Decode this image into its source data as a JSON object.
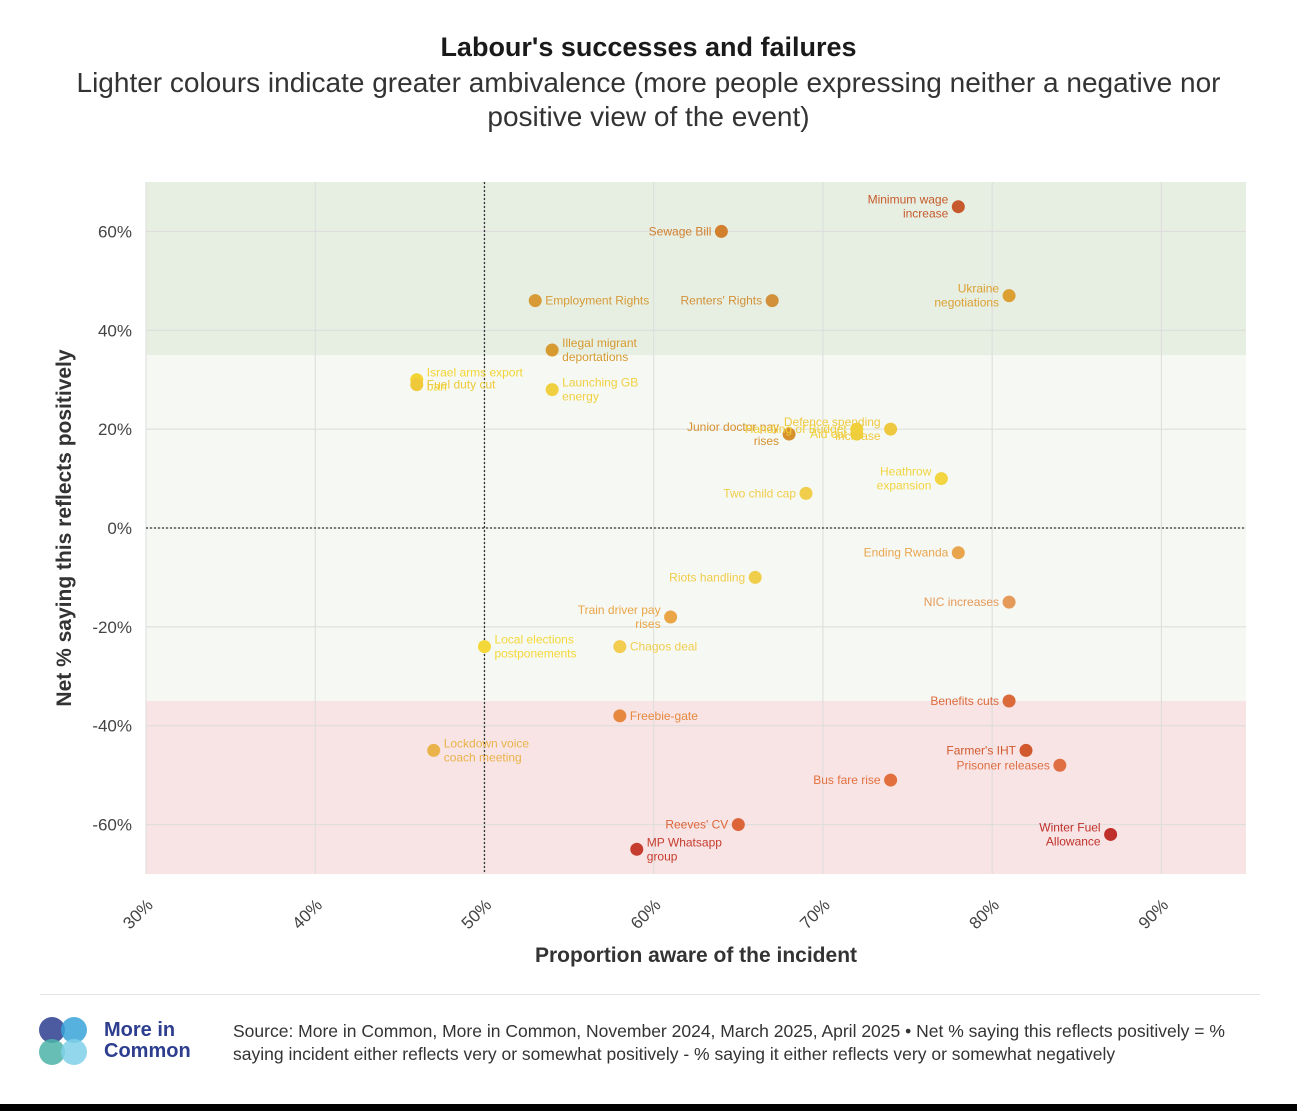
{
  "header": {
    "title": "Labour's successes and failures",
    "subtitle": "Lighter colours indicate greater ambivalence (more people expressing neither a negative nor positive view of the event)"
  },
  "chart_data": {
    "type": "scatter",
    "xlabel": "Proportion aware of the incident",
    "ylabel": "Net % saying this reflects positively",
    "xlim": [
      30,
      95
    ],
    "ylim": [
      -70,
      70
    ],
    "x_ticks": [
      30,
      40,
      50,
      60,
      70,
      80,
      90
    ],
    "x_tick_labels": [
      "30%",
      "40%",
      "50%",
      "60%",
      "70%",
      "80%",
      "90%"
    ],
    "y_ticks": [
      60,
      40,
      20,
      0,
      -20,
      -40,
      -60
    ],
    "y_tick_labels": [
      "60%",
      "40%",
      "20%",
      "0%",
      "-20%",
      "-40%",
      "-60%"
    ],
    "reference_lines": {
      "x": 50,
      "y": 0
    },
    "bands": [
      {
        "from": 35,
        "to": 70,
        "color": "#e7efe2"
      },
      {
        "from": -35,
        "to": 35,
        "color": "#f6f8f3"
      },
      {
        "from": -70,
        "to": -35,
        "color": "#f8e4e4"
      }
    ],
    "points": [
      {
        "label": "Minimum wage increase",
        "lines": [
          "Minimum wage",
          "increase"
        ],
        "x": 78,
        "y": 65,
        "color": "#c65a2c",
        "label_side": "left"
      },
      {
        "label": "Sewage Bill",
        "lines": [
          "Sewage Bill"
        ],
        "x": 64,
        "y": 60,
        "color": "#d27f2e",
        "label_side": "left"
      },
      {
        "label": "Employment Rights",
        "lines": [
          "Employment Rights"
        ],
        "x": 53,
        "y": 46,
        "color": "#d79a36",
        "label_side": "right"
      },
      {
        "label": "Renters' Rights",
        "lines": [
          "Renters' Rights"
        ],
        "x": 67,
        "y": 46,
        "color": "#d2903a",
        "label_side": "left"
      },
      {
        "label": "Ukraine negotiations",
        "lines": [
          "Ukraine",
          "negotiations"
        ],
        "x": 81,
        "y": 47,
        "color": "#dca032",
        "label_side": "left"
      },
      {
        "label": "Illegal migrant deportations",
        "lines": [
          "Illegal migrant",
          "deportations"
        ],
        "x": 54,
        "y": 36,
        "color": "#d69a30",
        "label_side": "right"
      },
      {
        "label": "Israel arms export ban",
        "lines": [
          "Israel arms export",
          "ban"
        ],
        "x": 46,
        "y": 30,
        "color": "#f2d534",
        "label_side": "right"
      },
      {
        "label": "Fuel duty cut",
        "lines": [
          "Fuel duty cut"
        ],
        "x": 46,
        "y": 29,
        "color": "#efc93a",
        "label_side": "right"
      },
      {
        "label": "Launching GB energy",
        "lines": [
          "Launching GB",
          "energy"
        ],
        "x": 54,
        "y": 28,
        "color": "#f0d040",
        "label_side": "right"
      },
      {
        "label": "Junior doctor pay rises",
        "lines": [
          "Junior doctor pay",
          "rises"
        ],
        "x": 68,
        "y": 19,
        "color": "#d7902e",
        "label_side": "left"
      },
      {
        "label": "Handling of Budget",
        "lines": [
          "Handling of Budget"
        ],
        "x": 72,
        "y": 20,
        "color": "#f2d038",
        "label_side": "left"
      },
      {
        "label": "Defence spending increase",
        "lines": [
          "Defence spending",
          "increase"
        ],
        "x": 74,
        "y": 20,
        "color": "#eec940",
        "label_side": "left"
      },
      {
        "label": "Aid cut",
        "lines": [
          "Aid cut"
        ],
        "x": 72,
        "y": 19,
        "color": "#efcf3a",
        "label_side": "left"
      },
      {
        "label": "Heathrow expansion",
        "lines": [
          "Heathrow",
          "expansion"
        ],
        "x": 77,
        "y": 10,
        "color": "#f2d540",
        "label_side": "left"
      },
      {
        "label": "Two child cap",
        "lines": [
          "Two child cap"
        ],
        "x": 69,
        "y": 7,
        "color": "#f0cd4a",
        "label_side": "left"
      },
      {
        "label": "Ending Rwanda",
        "lines": [
          "Ending Rwanda"
        ],
        "x": 78,
        "y": -5,
        "color": "#e9a54e",
        "label_side": "left"
      },
      {
        "label": "Riots handling",
        "lines": [
          "Riots handling"
        ],
        "x": 66,
        "y": -10,
        "color": "#f0cd4a",
        "label_side": "left"
      },
      {
        "label": "NIC increases",
        "lines": [
          "NIC increases"
        ],
        "x": 81,
        "y": -15,
        "color": "#e59a5a",
        "label_side": "left"
      },
      {
        "label": "Train driver pay rises",
        "lines": [
          "Train driver pay",
          "rises"
        ],
        "x": 61,
        "y": -18,
        "color": "#e9a546",
        "label_side": "left"
      },
      {
        "label": "Local elections postponements",
        "lines": [
          "Local elections",
          "postponements"
        ],
        "x": 50,
        "y": -24,
        "color": "#f4d83a",
        "label_side": "right"
      },
      {
        "label": "Chagos deal",
        "lines": [
          "Chagos deal"
        ],
        "x": 58,
        "y": -24,
        "color": "#f2cd50",
        "label_side": "right"
      },
      {
        "label": "Benefits cuts",
        "lines": [
          "Benefits cuts"
        ],
        "x": 81,
        "y": -35,
        "color": "#db6a3a",
        "label_side": "left"
      },
      {
        "label": "Freebie-gate",
        "lines": [
          "Freebie-gate"
        ],
        "x": 58,
        "y": -38,
        "color": "#e6883e",
        "label_side": "right"
      },
      {
        "label": "Lockdown voice coach meeting",
        "lines": [
          "Lockdown voice",
          "coach meeting"
        ],
        "x": 47,
        "y": -45,
        "color": "#eab24a",
        "label_side": "right"
      },
      {
        "label": "Farmer's IHT",
        "lines": [
          "Farmer's IHT"
        ],
        "x": 82,
        "y": -45,
        "color": "#d2582e",
        "label_side": "left"
      },
      {
        "label": "Prisoner releases",
        "lines": [
          "Prisoner releases"
        ],
        "x": 84,
        "y": -48,
        "color": "#df6e42",
        "label_side": "left"
      },
      {
        "label": "Bus fare rise",
        "lines": [
          "Bus fare rise"
        ],
        "x": 74,
        "y": -51,
        "color": "#e2703e",
        "label_side": "left"
      },
      {
        "label": "Reeves' CV",
        "lines": [
          "Reeves' CV"
        ],
        "x": 65,
        "y": -60,
        "color": "#dd6338",
        "label_side": "left"
      },
      {
        "label": "MP Whatsapp group",
        "lines": [
          "MP Whatsapp",
          "group"
        ],
        "x": 59,
        "y": -65,
        "color": "#c63c2e",
        "label_side": "right"
      },
      {
        "label": "Winter Fuel Allowance",
        "lines": [
          "Winter Fuel",
          "Allowance"
        ],
        "x": 87,
        "y": -62,
        "color": "#c0302a",
        "label_side": "left"
      }
    ]
  },
  "footer": {
    "brand_line1": "More in",
    "brand_line2": "Common",
    "source": "Source: More in Common, More in Common, November 2024, March 2025, April 2025 • Net % saying this reflects positively = % saying incident either reflects very or somewhat positively - % saying it either reflects very or somewhat negatively",
    "logo_colors": [
      "#2d3e8f",
      "#3aa3d8",
      "#4cb3a8",
      "#7fd0e8"
    ]
  }
}
